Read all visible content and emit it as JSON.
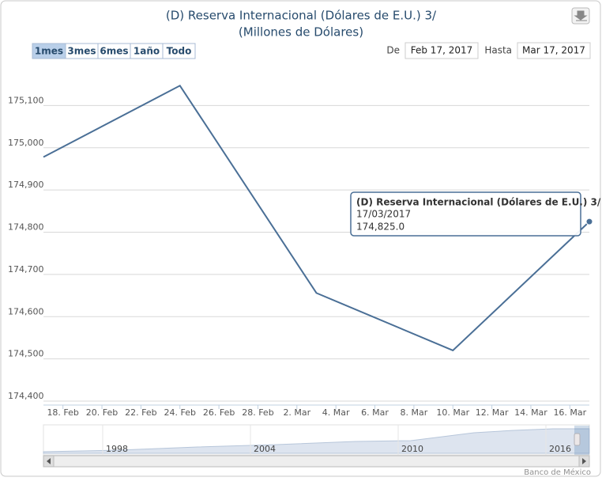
{
  "chart_data": {
    "type": "line",
    "title": "(D) Reserva Internacional (Dólares de E.U.) 3/",
    "subtitle": "(Millones de Dólares)",
    "range_buttons": [
      "1mes",
      "3mes",
      "6mes",
      "1año",
      "Todo"
    ],
    "selected_range": 0,
    "range_from_label": "De",
    "range_from": "Feb 17, 2017",
    "range_to_label": "Hasta",
    "range_to": "Mar 17, 2017",
    "x": [
      "2017-02-17",
      "2017-02-24",
      "2017-03-03",
      "2017-03-10",
      "2017-03-17"
    ],
    "series": [
      {
        "name": "(D) Reserva Internacional (Dólares de E.U.) 3/",
        "color": "#4a6f96",
        "values": [
          174978,
          175147,
          174656,
          174520,
          174825.0
        ],
        "value_labels": [
          null,
          null,
          null,
          null,
          "174,825.0"
        ]
      }
    ],
    "tooltip_point": 4,
    "tooltip_date": "17/03/2017",
    "xlim": [
      "2017-02-17",
      "2017-03-17"
    ],
    "xticks": [
      {
        "value": "2017-02-18",
        "label": "18. Feb"
      },
      {
        "value": "2017-02-20",
        "label": "20. Feb"
      },
      {
        "value": "2017-02-22",
        "label": "22. Feb"
      },
      {
        "value": "2017-02-24",
        "label": "24. Feb"
      },
      {
        "value": "2017-02-26",
        "label": "26. Feb"
      },
      {
        "value": "2017-02-28",
        "label": "28. Feb"
      },
      {
        "value": "2017-03-02",
        "label": "2. Mar"
      },
      {
        "value": "2017-03-04",
        "label": "4. Mar"
      },
      {
        "value": "2017-03-06",
        "label": "6. Mar"
      },
      {
        "value": "2017-03-08",
        "label": "8. Mar"
      },
      {
        "value": "2017-03-10",
        "label": "10. Mar"
      },
      {
        "value": "2017-03-12",
        "label": "12. Mar"
      },
      {
        "value": "2017-03-14",
        "label": "14. Mar"
      },
      {
        "value": "2017-03-16",
        "label": "16. Mar"
      }
    ],
    "ylim": [
      174400,
      175200
    ],
    "yticks": [
      {
        "value": 174400,
        "label": "174,400"
      },
      {
        "value": 174500,
        "label": "174,500"
      },
      {
        "value": 174600,
        "label": "174,600"
      },
      {
        "value": 174700,
        "label": "174,700"
      },
      {
        "value": 174800,
        "label": "174,800"
      },
      {
        "value": 174900,
        "label": "174,900"
      },
      {
        "value": 175000,
        "label": "175,000"
      },
      {
        "value": 175100,
        "label": "175,100"
      }
    ],
    "grid": true,
    "navigator_labels": [
      "1998",
      "2004",
      "2010",
      "2016"
    ],
    "credits": "Banco de México"
  }
}
